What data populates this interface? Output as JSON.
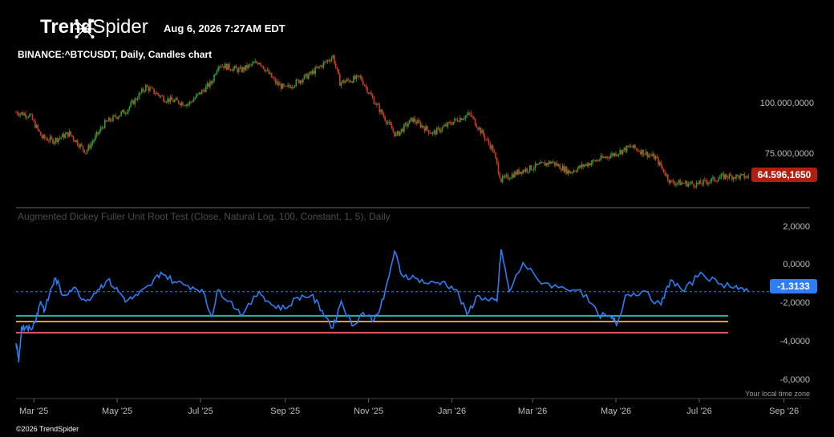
{
  "header": {
    "brand_bold": "Trend",
    "brand_light": "Spider",
    "timestamp": "Aug 6, 2026 7:27AM EDT",
    "symbol_line": "BINANCE:^BTCUSDT, Daily, Candles chart"
  },
  "footer": {
    "copyright": "©2026 TrendSpider",
    "timezone_note": "Your local time zone"
  },
  "colors": {
    "up": "#2f9d38",
    "down": "#d33b21",
    "adf_line": "#2f7df6",
    "level_teal": "#2ab3a6",
    "level_orange": "#f09a37",
    "level_red": "#e05a55",
    "price_tag": "#b21f10"
  },
  "chart_data": [
    {
      "type": "candlestick",
      "title": "BINANCE:^BTCUSDT, Daily, Candles chart",
      "last_value_label": "64.596,1650",
      "last_value": 64596.165,
      "y_tick_labels": [
        "100.000,0000",
        "75.000,0000"
      ],
      "y_ticks": [
        100000,
        75000
      ],
      "ylim": [
        55000,
        128000
      ],
      "x_tick_labels": [
        "Mar '25",
        "May '25",
        "Jul '25",
        "Sep '25",
        "Nov '25",
        "Jan '26",
        "Mar '26",
        "May '26",
        "Jul '26",
        "Sep '26"
      ],
      "x_tick_dates": [
        "2025-03-01",
        "2025-05-01",
        "2025-07-01",
        "2025-09-01",
        "2025-11-01",
        "2026-01-01",
        "2026-03-01",
        "2026-05-01",
        "2026-07-01",
        "2026-09-01"
      ],
      "x_range": [
        "2025-02-16",
        "2026-09-20"
      ],
      "close_path": [
        {
          "x": "2025-02-16",
          "y": 96500
        },
        {
          "x": "2025-02-26",
          "y": 95000
        },
        {
          "x": "2025-03-07",
          "y": 84000
        },
        {
          "x": "2025-03-15",
          "y": 82500
        },
        {
          "x": "2025-03-27",
          "y": 86000
        },
        {
          "x": "2025-04-08",
          "y": 77000
        },
        {
          "x": "2025-04-22",
          "y": 91000
        },
        {
          "x": "2025-05-08",
          "y": 97500
        },
        {
          "x": "2025-05-22",
          "y": 109000
        },
        {
          "x": "2025-06-05",
          "y": 103000
        },
        {
          "x": "2025-06-22",
          "y": 100500
        },
        {
          "x": "2025-07-09",
          "y": 111000
        },
        {
          "x": "2025-07-14",
          "y": 120000
        },
        {
          "x": "2025-07-30",
          "y": 117000
        },
        {
          "x": "2025-08-13",
          "y": 121500
        },
        {
          "x": "2025-08-25",
          "y": 111000
        },
        {
          "x": "2025-09-01",
          "y": 108000
        },
        {
          "x": "2025-09-20",
          "y": 115500
        },
        {
          "x": "2025-10-06",
          "y": 124000
        },
        {
          "x": "2025-10-11",
          "y": 111000
        },
        {
          "x": "2025-10-26",
          "y": 113500
        },
        {
          "x": "2025-11-05",
          "y": 102000
        },
        {
          "x": "2025-11-21",
          "y": 85000
        },
        {
          "x": "2025-12-03",
          "y": 93000
        },
        {
          "x": "2025-12-18",
          "y": 86000
        },
        {
          "x": "2026-01-05",
          "y": 93000
        },
        {
          "x": "2026-01-14",
          "y": 95500
        },
        {
          "x": "2026-01-31",
          "y": 78000
        },
        {
          "x": "2026-02-06",
          "y": 63000
        },
        {
          "x": "2026-02-20",
          "y": 67500
        },
        {
          "x": "2026-03-15",
          "y": 72000
        },
        {
          "x": "2026-03-28",
          "y": 67000
        },
        {
          "x": "2026-04-10",
          "y": 71000
        },
        {
          "x": "2026-04-30",
          "y": 76000
        },
        {
          "x": "2026-05-12",
          "y": 79500
        },
        {
          "x": "2026-05-30",
          "y": 74000
        },
        {
          "x": "2026-06-10",
          "y": 62000
        },
        {
          "x": "2026-06-30",
          "y": 61000
        },
        {
          "x": "2026-07-20",
          "y": 65000
        },
        {
          "x": "2026-08-06",
          "y": 64596
        }
      ]
    },
    {
      "type": "line",
      "title": "Augmented Dickey Fuller Unit Root Test (Close, Natural Log, 100, Constant, 1, 5), Daily",
      "last_value_label": "-1.3133",
      "last_value": -1.3133,
      "y_tick_labels": [
        "2,0000",
        "0,0000",
        "-2,0000",
        "-4,0000",
        "-6,0000"
      ],
      "y_ticks": [
        2,
        0,
        -2,
        -4,
        -6
      ],
      "ylim": [
        -6.8,
        2.4
      ],
      "levels": [
        {
          "value": -2.57,
          "color": "#2ab3a6"
        },
        {
          "value": -2.87,
          "color": "#f09a37"
        },
        {
          "value": -3.45,
          "color": "#e05a55"
        }
      ],
      "points": [
        {
          "x": "2025-02-16",
          "y": -4.0
        },
        {
          "x": "2025-02-18",
          "y": -5.0
        },
        {
          "x": "2025-02-20",
          "y": -3.2
        },
        {
          "x": "2025-02-24",
          "y": -3.1
        },
        {
          "x": "2025-02-27",
          "y": -3.3
        },
        {
          "x": "2025-03-03",
          "y": -2.6
        },
        {
          "x": "2025-03-06",
          "y": -1.8
        },
        {
          "x": "2025-03-09",
          "y": -2.3
        },
        {
          "x": "2025-03-14",
          "y": -1.1
        },
        {
          "x": "2025-03-17",
          "y": -0.6
        },
        {
          "x": "2025-03-22",
          "y": -1.5
        },
        {
          "x": "2025-03-30",
          "y": -1.1
        },
        {
          "x": "2025-04-08",
          "y": -1.8
        },
        {
          "x": "2025-04-17",
          "y": -1.2
        },
        {
          "x": "2025-04-24",
          "y": -0.7
        },
        {
          "x": "2025-05-02",
          "y": -1.3
        },
        {
          "x": "2025-05-08",
          "y": -1.8
        },
        {
          "x": "2025-05-16",
          "y": -1.5
        },
        {
          "x": "2025-05-25",
          "y": -1.0
        },
        {
          "x": "2025-06-02",
          "y": -0.3
        },
        {
          "x": "2025-06-12",
          "y": -0.8
        },
        {
          "x": "2025-06-22",
          "y": -1.0
        },
        {
          "x": "2025-07-02",
          "y": -1.2
        },
        {
          "x": "2025-07-09",
          "y": -2.6
        },
        {
          "x": "2025-07-14",
          "y": -1.2
        },
        {
          "x": "2025-07-22",
          "y": -1.8
        },
        {
          "x": "2025-08-01",
          "y": -2.5
        },
        {
          "x": "2025-08-13",
          "y": -1.3
        },
        {
          "x": "2025-08-22",
          "y": -2.0
        },
        {
          "x": "2025-09-01",
          "y": -2.2
        },
        {
          "x": "2025-09-10",
          "y": -1.6
        },
        {
          "x": "2025-09-20",
          "y": -1.5
        },
        {
          "x": "2025-09-28",
          "y": -2.3
        },
        {
          "x": "2025-10-06",
          "y": -3.2
        },
        {
          "x": "2025-10-12",
          "y": -1.8
        },
        {
          "x": "2025-10-20",
          "y": -3.1
        },
        {
          "x": "2025-10-28",
          "y": -2.4
        },
        {
          "x": "2025-11-05",
          "y": -2.8
        },
        {
          "x": "2025-11-12",
          "y": -1.7
        },
        {
          "x": "2025-11-20",
          "y": 0.8
        },
        {
          "x": "2025-11-25",
          "y": -0.4
        },
        {
          "x": "2025-12-05",
          "y": -0.6
        },
        {
          "x": "2025-12-15",
          "y": -0.9
        },
        {
          "x": "2025-12-25",
          "y": -0.8
        },
        {
          "x": "2026-01-04",
          "y": -1.2
        },
        {
          "x": "2026-01-12",
          "y": -2.5
        },
        {
          "x": "2026-01-20",
          "y": -1.5
        },
        {
          "x": "2026-01-28",
          "y": -1.8
        },
        {
          "x": "2026-02-03",
          "y": -1.8
        },
        {
          "x": "2026-02-06",
          "y": 0.9
        },
        {
          "x": "2026-02-12",
          "y": -1.3
        },
        {
          "x": "2026-02-22",
          "y": 0.2
        },
        {
          "x": "2026-03-05",
          "y": -0.7
        },
        {
          "x": "2026-03-20",
          "y": -1.1
        },
        {
          "x": "2026-04-05",
          "y": -1.2
        },
        {
          "x": "2026-04-18",
          "y": -2.5
        },
        {
          "x": "2026-04-28",
          "y": -2.7
        },
        {
          "x": "2026-05-02",
          "y": -3.0
        },
        {
          "x": "2026-05-08",
          "y": -1.5
        },
        {
          "x": "2026-05-20",
          "y": -1.3
        },
        {
          "x": "2026-06-03",
          "y": -2.0
        },
        {
          "x": "2026-06-10",
          "y": -0.7
        },
        {
          "x": "2026-06-20",
          "y": -1.3
        },
        {
          "x": "2026-07-02",
          "y": -0.3
        },
        {
          "x": "2026-07-15",
          "y": -0.9
        },
        {
          "x": "2026-07-28",
          "y": -1.0
        },
        {
          "x": "2026-08-06",
          "y": -1.3133
        }
      ]
    }
  ]
}
